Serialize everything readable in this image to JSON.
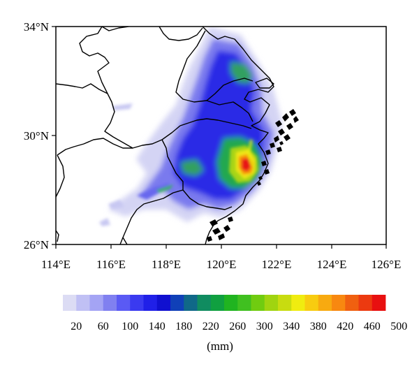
{
  "map": {
    "region": "Yangtze River Delta / Zhejiang coast",
    "lon_range": [
      114,
      126
    ],
    "lat_range": [
      26,
      34
    ],
    "x_ticks": [
      "114°E",
      "116°E",
      "118°E",
      "120°E",
      "122°E",
      "124°E",
      "126°E"
    ],
    "y_ticks": [
      "26°N",
      "30°N",
      "34°N"
    ],
    "max_area": "Northeastern Zhejiang near 121°E, 29°N"
  },
  "colorbar": {
    "labels": [
      "20",
      "60",
      "100",
      "140",
      "180",
      "220",
      "260",
      "300",
      "340",
      "380",
      "420",
      "460",
      "500"
    ],
    "unit": "(mm)",
    "colors": [
      "#dcdcf4",
      "#c0c0f4",
      "#a4a4f4",
      "#8080f0",
      "#5a5af4",
      "#3a3af0",
      "#2020e8",
      "#1010d0",
      "#1040b8",
      "#106888",
      "#108c60",
      "#10a040",
      "#20b420",
      "#40c020",
      "#70cc10",
      "#a0d410",
      "#c8dc10",
      "#f0ec10",
      "#f8cc10",
      "#f8aa10",
      "#f88810",
      "#f06010",
      "#ec3a10",
      "#e81010"
    ]
  }
}
